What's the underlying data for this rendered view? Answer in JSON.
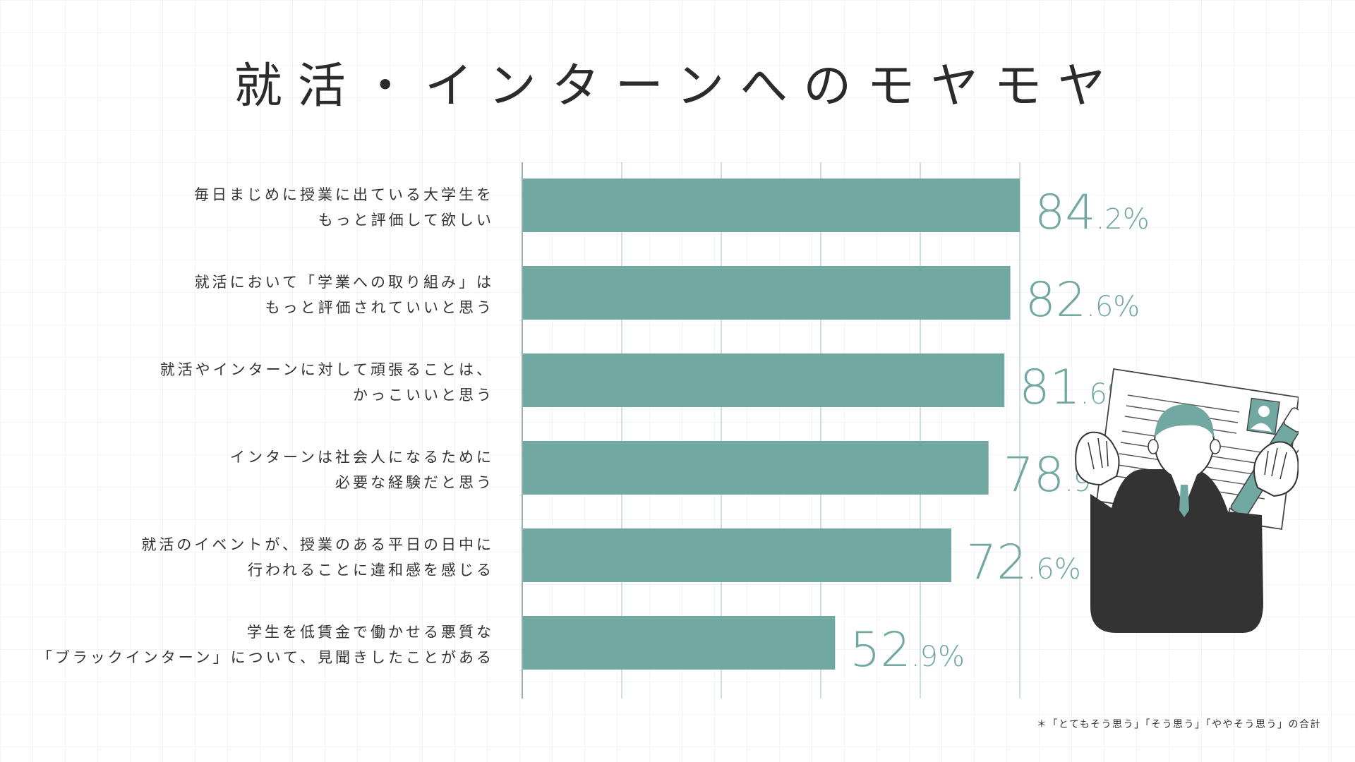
{
  "title": "就活・インターンへのモヤモヤ",
  "footnote": "＊「とてもそう思う」「そう思う」「ややそう思う」の合計",
  "colors": {
    "bar": "#72a8a2",
    "value_text": "#72a8a2",
    "grid": "#b9ccc9",
    "axis": "#7b9c98",
    "title": "#2b2b2b",
    "dark": "#333333"
  },
  "illustration": {
    "icons": [
      "resume-document-icon",
      "pen-icon",
      "person-raising-hands-icon"
    ]
  },
  "chart_data": {
    "type": "bar",
    "orientation": "horizontal",
    "title": "就活・インターンへのモヤモヤ",
    "categories": [
      [
        "毎日まじめに授業に出ている大学生を",
        "もっと評価して欲しい"
      ],
      [
        "就活において「学業への取り組み」は",
        "もっと評価されていいと思う"
      ],
      [
        "就活やインターンに対して頑張ることは、",
        "かっこいいと思う"
      ],
      [
        "インターンは社会人になるために",
        "必要な経験だと思う"
      ],
      [
        "就活のイベントが、授業のある平日の日中に",
        "行われることに違和感を感じる"
      ],
      [
        "学生を低賃金で働かせる悪質な",
        "「ブラックインターン」について、見聞きしたことがある"
      ]
    ],
    "values": [
      84.2,
      82.6,
      81.6,
      78.9,
      72.6,
      52.9
    ],
    "value_unit": "%",
    "xlim": [
      0,
      100
    ],
    "grid": true,
    "legend": "none"
  }
}
